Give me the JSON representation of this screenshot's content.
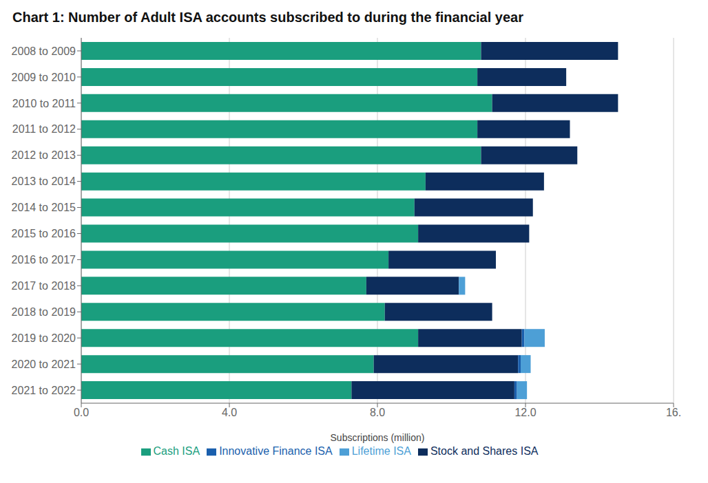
{
  "chart_data": {
    "type": "bar",
    "title": "Chart 1: Number of Adult ISA accounts subscribed to during the financial year",
    "xlabel": "Subscriptions (million)",
    "orientation": "horizontal",
    "stacked": true,
    "grid": true,
    "legend": "bottom",
    "categories": [
      "2008 to 2009",
      "2009 to 2010",
      "2010 to 2011",
      "2011 to 2012",
      "2012 to 2013",
      "2013 to 2014",
      "2014 to 2015",
      "2015 to 2016",
      "2016 to 2017",
      "2017 to 2018",
      "2018 to 2019",
      "2019 to 2020",
      "2020 to 2021",
      "2021 to 2022"
    ],
    "series": [
      {
        "name": "Cash ISA",
        "color": "#1a9e7e",
        "values": [
          10.8,
          10.7,
          11.1,
          10.7,
          10.8,
          9.3,
          9.0,
          9.1,
          8.3,
          7.7,
          8.2,
          9.1,
          7.9,
          7.3
        ]
      },
      {
        "name": "Stock and Shares ISA",
        "color": "#0d2d5c",
        "values": [
          3.7,
          2.4,
          3.4,
          2.5,
          2.6,
          3.2,
          3.2,
          3.0,
          2.9,
          2.5,
          2.9,
          2.8,
          3.9,
          4.4
        ]
      },
      {
        "name": "Innovative Finance ISA",
        "color": "#1a5fad",
        "values": [
          0.0,
          0.0,
          0.0,
          0.0,
          0.0,
          0.0,
          0.0,
          0.0,
          0.0,
          0.0,
          0.0,
          0.07,
          0.07,
          0.07
        ]
      },
      {
        "name": "Lifetime ISA",
        "color": "#4d9fd6",
        "values": [
          0.0,
          0.0,
          0.0,
          0.0,
          0.0,
          0.0,
          0.0,
          0.0,
          0.0,
          0.17,
          0.0,
          0.55,
          0.27,
          0.27
        ]
      }
    ],
    "xlim": [
      0,
      16
    ],
    "xticks": [
      {
        "value": 0,
        "label": "0.0"
      },
      {
        "value": 4,
        "label": "4.0"
      },
      {
        "value": 8,
        "label": "8.0"
      },
      {
        "value": 12,
        "label": "12.0"
      },
      {
        "value": 16,
        "label": "16."
      }
    ]
  }
}
